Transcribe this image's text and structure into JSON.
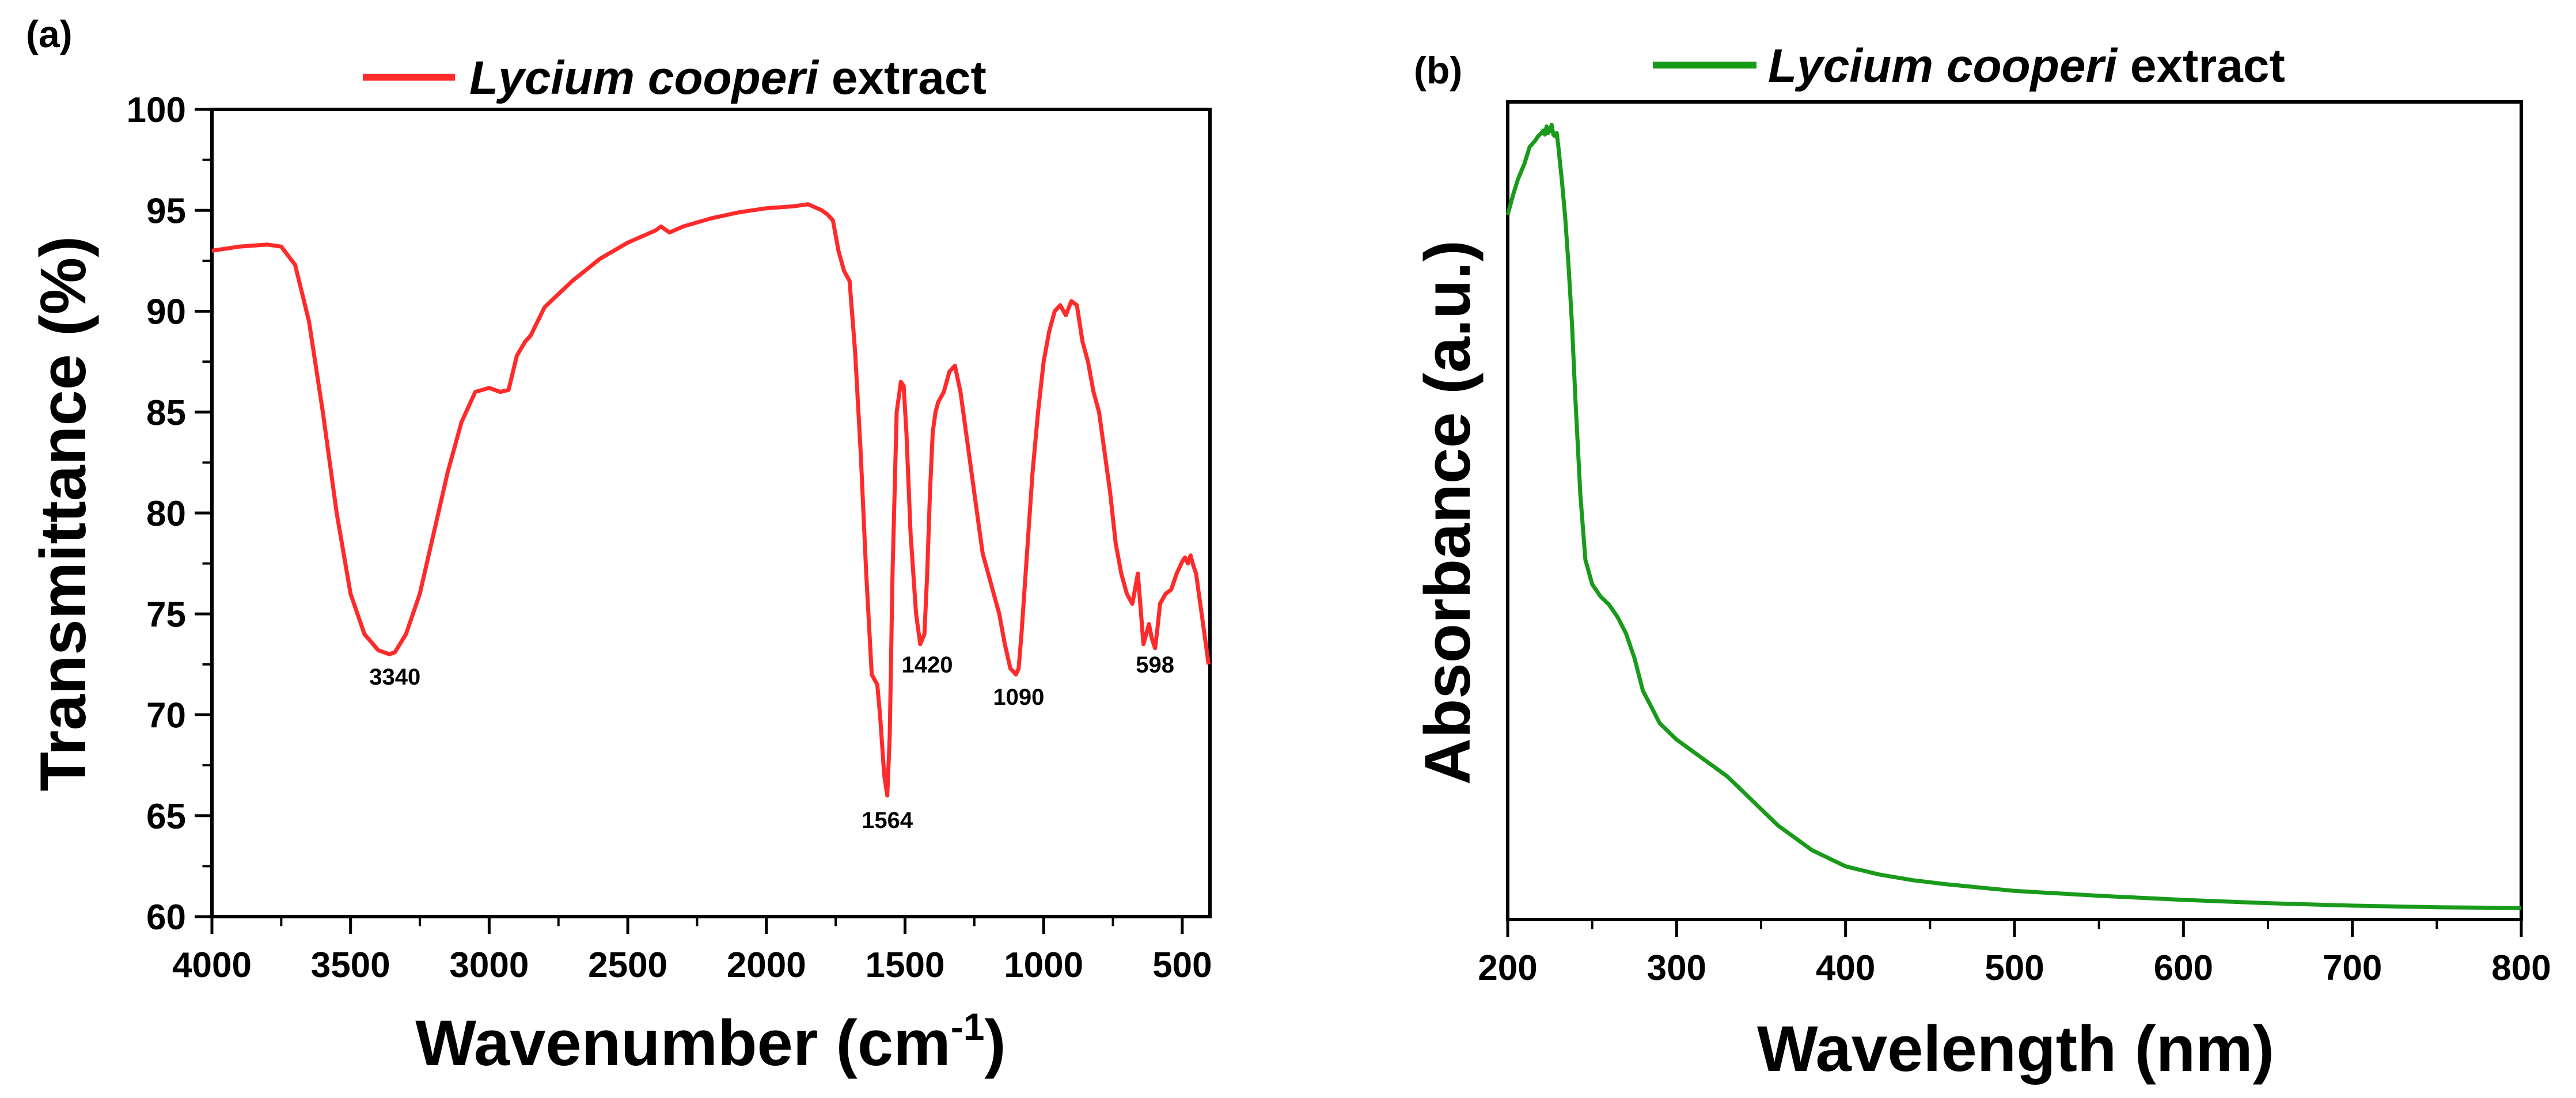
{
  "chart_data": [
    {
      "type": "line",
      "panel": "(a)",
      "legend": {
        "name_italic": "Lycium cooperi",
        "name_rest": " extract",
        "color": "#ff2a2a"
      },
      "xlabel": {
        "text": "Wavenumber (cm",
        "sup": "-1",
        "close": ")"
      },
      "ylabel": "Transmittance (%)",
      "xlim": [
        4000,
        400
      ],
      "ylim": [
        60,
        100
      ],
      "xticks": [
        4000,
        3500,
        3000,
        2500,
        2000,
        1500,
        1000,
        500
      ],
      "yticks": [
        60,
        65,
        70,
        75,
        80,
        85,
        90,
        95,
        100
      ],
      "color": "#ff2a2a",
      "series": [
        {
          "name": "Lycium cooperi extract",
          "x": [
            4000,
            3900,
            3800,
            3750,
            3700,
            3650,
            3600,
            3550,
            3500,
            3450,
            3400,
            3360,
            3340,
            3300,
            3250,
            3200,
            3150,
            3100,
            3050,
            3000,
            2960,
            2930,
            2900,
            2870,
            2850,
            2800,
            2700,
            2600,
            2500,
            2400,
            2380,
            2350,
            2300,
            2200,
            2100,
            2000,
            1900,
            1850,
            1800,
            1780,
            1760,
            1740,
            1720,
            1700,
            1680,
            1660,
            1640,
            1620,
            1600,
            1590,
            1575,
            1564,
            1555,
            1545,
            1530,
            1515,
            1505,
            1495,
            1480,
            1460,
            1445,
            1430,
            1420,
            1410,
            1400,
            1390,
            1380,
            1360,
            1340,
            1320,
            1300,
            1280,
            1260,
            1240,
            1220,
            1200,
            1180,
            1160,
            1140,
            1120,
            1100,
            1090,
            1080,
            1060,
            1040,
            1020,
            1000,
            980,
            960,
            940,
            920,
            900,
            880,
            860,
            840,
            820,
            800,
            780,
            760,
            740,
            720,
            700,
            680,
            660,
            640,
            620,
            610,
            598,
            590,
            580,
            560,
            540,
            520,
            500,
            490,
            480,
            470,
            460,
            450,
            440,
            430,
            420,
            410,
            405
          ],
          "y": [
            93,
            93.2,
            93.3,
            93.2,
            92.3,
            89.5,
            85,
            80,
            76,
            74,
            73.2,
            73,
            73.1,
            74,
            76,
            79,
            82,
            84.5,
            86,
            86.2,
            86,
            86.1,
            87.8,
            88.5,
            88.8,
            90.2,
            91.5,
            92.6,
            93.4,
            94,
            94.2,
            93.9,
            94.2,
            94.6,
            94.9,
            95.1,
            95.2,
            95.3,
            95,
            94.8,
            94.5,
            93,
            92,
            91.5,
            88,
            83,
            77,
            72,
            71.5,
            70,
            67,
            66,
            69,
            77,
            85,
            86.5,
            86.3,
            84,
            79,
            75,
            73.5,
            74,
            77,
            81,
            84,
            85,
            85.5,
            86,
            87,
            87.3,
            86,
            84,
            82,
            80,
            78,
            77,
            76,
            75,
            73.5,
            72.3,
            72,
            72.3,
            74,
            78,
            82,
            85,
            87.5,
            89,
            90,
            90.3,
            89.8,
            90.5,
            90.3,
            88.5,
            87.5,
            86,
            85,
            83,
            81,
            78.5,
            77,
            76,
            75.5,
            77,
            73.5,
            74.5,
            73.8,
            73.3,
            74.2,
            75.5,
            76,
            76.2,
            77,
            77.6,
            77.8,
            77.5,
            77.9,
            77.4,
            77,
            76,
            75,
            74,
            73,
            72.5
          ]
        }
      ],
      "annotations": [
        {
          "label": "3340",
          "x": 3340,
          "y": 71.5
        },
        {
          "label": "1564",
          "x": 1564,
          "y": 64.4
        },
        {
          "label": "1420",
          "x": 1420,
          "y": 72.1
        },
        {
          "label": "1090",
          "x": 1090,
          "y": 70.5
        },
        {
          "label": "598",
          "x": 598,
          "y": 72.1
        }
      ]
    },
    {
      "type": "line",
      "panel": "(b)",
      "legend": {
        "name_italic": "Lycium cooperi",
        "name_rest": " extract",
        "color": "#1a9a1a"
      },
      "xlabel": {
        "text": "Wavelength (nm)"
      },
      "ylabel": "Absorbance (a.u.)",
      "xlim": [
        200,
        800
      ],
      "ylim": [
        0,
        1
      ],
      "xticks": [
        200,
        300,
        400,
        500,
        600,
        700,
        800
      ],
      "yticks": [],
      "color": "#1a9a1a",
      "series": [
        {
          "name": "Lycium cooperi extract",
          "x": [
            200,
            203,
            206,
            210,
            213,
            216,
            218,
            220,
            221,
            222,
            223,
            224,
            225,
            226,
            227,
            228,
            229,
            230,
            231,
            232,
            234,
            236,
            238,
            240,
            243,
            246,
            250,
            255,
            260,
            265,
            270,
            275,
            280,
            290,
            300,
            310,
            320,
            330,
            340,
            350,
            360,
            370,
            380,
            390,
            400,
            420,
            440,
            460,
            480,
            500,
            550,
            600,
            650,
            700,
            750,
            800
          ],
          "y": [
            0.862,
            0.885,
            0.905,
            0.925,
            0.945,
            0.952,
            0.958,
            0.962,
            0.965,
            0.96,
            0.97,
            0.962,
            0.965,
            0.972,
            0.96,
            0.958,
            0.962,
            0.945,
            0.925,
            0.905,
            0.86,
            0.8,
            0.73,
            0.64,
            0.52,
            0.44,
            0.41,
            0.395,
            0.385,
            0.37,
            0.35,
            0.32,
            0.28,
            0.24,
            0.22,
            0.205,
            0.19,
            0.175,
            0.155,
            0.135,
            0.115,
            0.1,
            0.085,
            0.075,
            0.065,
            0.055,
            0.048,
            0.043,
            0.039,
            0.035,
            0.029,
            0.024,
            0.02,
            0.017,
            0.015,
            0.014
          ]
        }
      ],
      "annotations": []
    }
  ]
}
